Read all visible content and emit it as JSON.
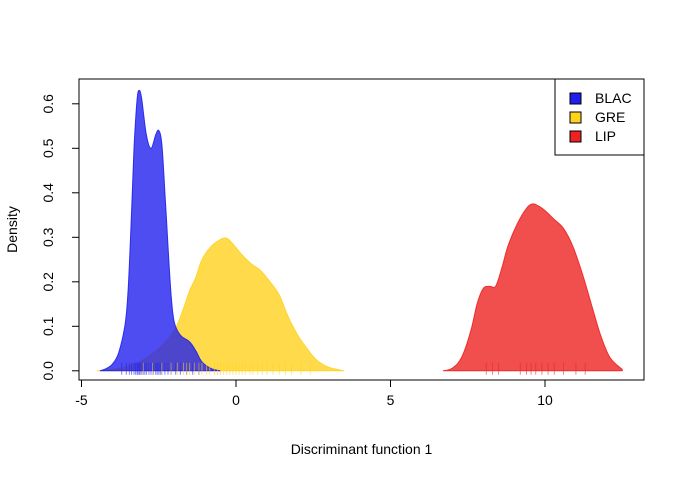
{
  "chart_data": {
    "type": "area",
    "title": "",
    "xlabel": "Discriminant function 1",
    "ylabel": "Density",
    "xlim": [
      -5,
      13
    ],
    "ylim": [
      0,
      0.65
    ],
    "xticks": [
      -5,
      0,
      5,
      10
    ],
    "xtick_labels": [
      "-5",
      "0",
      "5",
      "10"
    ],
    "yticks": [
      0.0,
      0.1,
      0.2,
      0.3,
      0.4,
      0.5,
      0.6
    ],
    "ytick_labels": [
      "0.0",
      "0.1",
      "0.2",
      "0.3",
      "0.4",
      "0.5",
      "0.6"
    ],
    "grid": false,
    "legend_position": "top-right",
    "series": [
      {
        "name": "BLAC",
        "color": "#2020ee",
        "density": [
          [
            -4.4,
            0
          ],
          [
            -4.2,
            0.005
          ],
          [
            -4.0,
            0.015
          ],
          [
            -3.8,
            0.04
          ],
          [
            -3.6,
            0.1
          ],
          [
            -3.5,
            0.17
          ],
          [
            -3.4,
            0.32
          ],
          [
            -3.3,
            0.5
          ],
          [
            -3.2,
            0.61
          ],
          [
            -3.13,
            0.63
          ],
          [
            -3.05,
            0.61
          ],
          [
            -2.9,
            0.53
          ],
          [
            -2.75,
            0.5
          ],
          [
            -2.6,
            0.53
          ],
          [
            -2.5,
            0.54
          ],
          [
            -2.4,
            0.51
          ],
          [
            -2.3,
            0.4
          ],
          [
            -2.2,
            0.28
          ],
          [
            -2.1,
            0.17
          ],
          [
            -2.0,
            0.11
          ],
          [
            -1.8,
            0.08
          ],
          [
            -1.5,
            0.065
          ],
          [
            -1.3,
            0.045
          ],
          [
            -1.1,
            0.02
          ],
          [
            -0.8,
            0.005
          ],
          [
            -0.5,
            0
          ]
        ],
        "rug": [
          -3.7,
          -3.55,
          -3.45,
          -3.38,
          -3.3,
          -3.25,
          -3.2,
          -3.17,
          -3.13,
          -3.1,
          -3.05,
          -3.0,
          -2.95,
          -2.9,
          -2.82,
          -2.75,
          -2.68,
          -2.6,
          -2.55,
          -2.5,
          -2.45,
          -2.4,
          -2.3,
          -2.2,
          -2.1,
          -1.95,
          -1.8,
          -1.6,
          -1.4,
          -1.2
        ]
      },
      {
        "name": "GRE",
        "color": "#ffd21e",
        "density": [
          [
            -4.5,
            0
          ],
          [
            -4.0,
            0.003
          ],
          [
            -3.5,
            0.01
          ],
          [
            -3.0,
            0.025
          ],
          [
            -2.5,
            0.05
          ],
          [
            -2.0,
            0.09
          ],
          [
            -1.7,
            0.14
          ],
          [
            -1.5,
            0.18
          ],
          [
            -1.3,
            0.21
          ],
          [
            -1.1,
            0.25
          ],
          [
            -0.8,
            0.28
          ],
          [
            -0.5,
            0.295
          ],
          [
            -0.3,
            0.298
          ],
          [
            -0.1,
            0.285
          ],
          [
            0.2,
            0.26
          ],
          [
            0.5,
            0.24
          ],
          [
            0.8,
            0.225
          ],
          [
            1.1,
            0.2
          ],
          [
            1.4,
            0.17
          ],
          [
            1.7,
            0.12
          ],
          [
            2.0,
            0.08
          ],
          [
            2.3,
            0.05
          ],
          [
            2.6,
            0.025
          ],
          [
            3.0,
            0.008
          ],
          [
            3.5,
            0
          ]
        ],
        "rug": [
          -3.0,
          -2.7,
          -2.4,
          -2.1,
          -1.9,
          -1.7,
          -1.6,
          -1.5,
          -1.35,
          -1.2,
          -1.1,
          -0.95,
          -0.85,
          -0.7,
          -0.6,
          -0.5,
          -0.4,
          -0.3,
          -0.2,
          -0.1,
          0.0,
          0.1,
          0.2,
          0.3,
          0.45,
          0.55,
          0.7,
          0.85,
          1.0,
          1.2,
          1.4,
          1.6,
          1.8,
          2.1,
          2.4
        ]
      },
      {
        "name": "LIP",
        "color": "#ee2222",
        "density": [
          [
            6.7,
            0
          ],
          [
            7.0,
            0.006
          ],
          [
            7.3,
            0.03
          ],
          [
            7.6,
            0.09
          ],
          [
            7.8,
            0.15
          ],
          [
            8.0,
            0.185
          ],
          [
            8.2,
            0.19
          ],
          [
            8.4,
            0.19
          ],
          [
            8.6,
            0.23
          ],
          [
            8.8,
            0.28
          ],
          [
            9.1,
            0.33
          ],
          [
            9.4,
            0.365
          ],
          [
            9.6,
            0.375
          ],
          [
            9.8,
            0.37
          ],
          [
            10.0,
            0.36
          ],
          [
            10.3,
            0.34
          ],
          [
            10.6,
            0.32
          ],
          [
            10.9,
            0.28
          ],
          [
            11.2,
            0.22
          ],
          [
            11.5,
            0.15
          ],
          [
            11.8,
            0.08
          ],
          [
            12.1,
            0.03
          ],
          [
            12.5,
            0.003
          ]
        ],
        "rug": [
          8.1,
          8.3,
          8.5,
          9.2,
          9.4,
          9.55,
          9.7,
          9.9,
          10.1,
          10.3,
          10.6,
          11.0,
          11.3
        ]
      }
    ]
  }
}
